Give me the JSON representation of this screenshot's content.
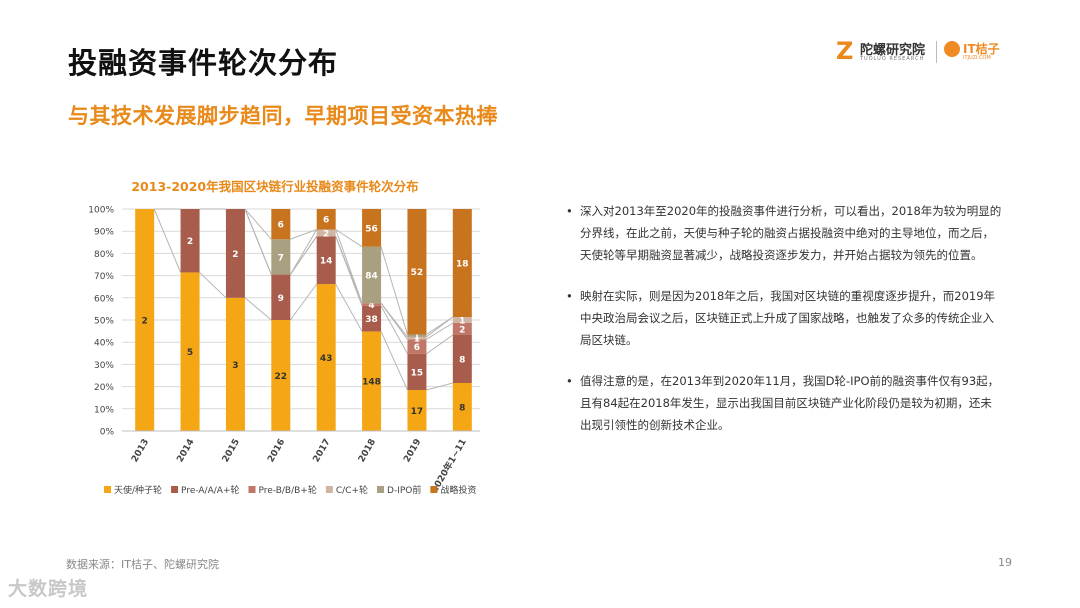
{
  "page": {
    "title": "投融资事件轮次分布",
    "subtitle": "与其技术发展脚步趋同，早期项目受资本热捧",
    "source": "数据来源：IT桔子、陀螺研究院",
    "page_number": "19",
    "watermark": "大数跨境"
  },
  "logos": {
    "tuoluo_mark": "Z",
    "tuoluo_name": "陀螺研究院",
    "tuoluo_en": "TUOLUO RESEARCH",
    "itjuzi_name": "IT桔子",
    "itjuzi_sub": "ITJUZI.COM"
  },
  "bullets": [
    "深入对2013年至2020年的投融资事件进行分析，可以看出，2018年为较为明显的分界线，在此之前，天使与种子轮的融资占据投融资中绝对的主导地位，而之后，天使轮等早期融资显著减少，战略投资逐步发力，并开始占据较为领先的位置。",
    "映射在实际，则是因为2018年之后，我国对区块链的重视度逐步提升，而2019年中央政治局会议之后，区块链正式上升成了国家战略，也触发了众多的传统企业入局区块链。",
    "值得注意的是，在2013年到2020年11月，我国D轮-IPO前的融资事件仅有93起，且有84起在2018年发生，显示出我国目前区块链产业化阶段仍是较为初期，还未出现引领性的创新技术企业。"
  ],
  "chart_data": {
    "type": "bar",
    "stacked": "percent",
    "title": "2013-2020年我国区块链行业投融资事件轮次分布",
    "categories": [
      "2013",
      "2014",
      "2015",
      "2016",
      "2017",
      "2018",
      "2019",
      "2020年1~11"
    ],
    "y_ticks": [
      "0%",
      "10%",
      "20%",
      "30%",
      "40%",
      "50%",
      "60%",
      "70%",
      "80%",
      "90%",
      "100%"
    ],
    "ylim": [
      0,
      100
    ],
    "grid": true,
    "legend_position": "bottom",
    "series": [
      {
        "name": "天使/种子轮",
        "color": "#f5a614",
        "values": [
          2,
          5,
          3,
          22,
          43,
          148,
          17,
          8
        ],
        "labels": [
          "2",
          "5",
          "3",
          "22",
          "43",
          "148",
          "17",
          "8"
        ]
      },
      {
        "name": "Pre-A/A/A+轮",
        "color": "#a85d4c",
        "values": [
          0,
          2,
          2,
          9,
          14,
          38,
          15,
          8
        ],
        "labels": [
          "",
          "2",
          "2",
          "9",
          "14",
          "38",
          "15",
          "8"
        ]
      },
      {
        "name": "Pre-B/B/B+轮",
        "color": "#c0776a",
        "values": [
          0,
          0,
          0,
          0,
          0,
          4,
          6,
          2
        ],
        "labels": [
          "",
          "",
          "",
          "",
          "",
          "4",
          "6",
          "2"
        ]
      },
      {
        "name": "C/C+轮",
        "color": "#d1b5a3",
        "values": [
          0,
          0,
          0,
          0,
          2,
          0,
          1,
          1
        ],
        "labels": [
          "",
          "",
          "",
          "",
          "2",
          "",
          "1",
          "1"
        ]
      },
      {
        "name": "D-IPO前",
        "color": "#a8a080",
        "values": [
          0,
          0,
          0,
          7,
          0,
          84,
          1,
          0
        ],
        "labels": [
          "",
          "",
          "",
          "7",
          "",
          "84",
          "1",
          ""
        ]
      },
      {
        "name": "战略投资",
        "color": "#c8741e",
        "values": [
          0,
          0,
          0,
          6,
          6,
          56,
          52,
          18
        ],
        "labels": [
          "",
          "",
          "",
          "6",
          "6",
          "56",
          "52",
          "18"
        ]
      }
    ]
  }
}
